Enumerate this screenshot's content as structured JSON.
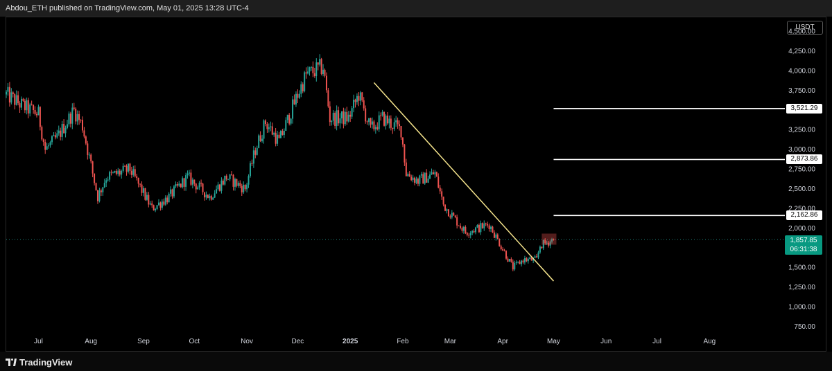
{
  "header": {
    "published": "Abdou_ETH published on TradingView.com, May 01, 2025 13:28 UTC-4"
  },
  "footer": {
    "brand": "TradingView"
  },
  "colors": {
    "up": "#26a69a",
    "down": "#ef5350",
    "trendline": "#f6e58d",
    "level": "#ffffff",
    "price_tag": "#089981"
  },
  "chart_data": {
    "type": "candlestick",
    "symbol_currency": "USDT",
    "y_ticks": [
      "4,500.00",
      "4,250.00",
      "4,000.00",
      "3,750.00",
      "3,500.00",
      "3,250.00",
      "3,000.00",
      "2,750.00",
      "2,500.00",
      "2,250.00",
      "2,000.00",
      "1,750.00",
      "1,500.00",
      "1,250.00",
      "1,000.00",
      "750.00"
    ],
    "y_tick_values": [
      4500,
      4250,
      4000,
      3750,
      3500,
      3250,
      3000,
      2750,
      2500,
      2250,
      2000,
      1750,
      1500,
      1250,
      1000,
      750
    ],
    "ylim": [
      680,
      4680
    ],
    "x_ticks": [
      "Jul",
      "Aug",
      "Sep",
      "Oct",
      "Nov",
      "Dec",
      "2025",
      "Feb",
      "Mar",
      "Apr",
      "May",
      "Jun",
      "Jul",
      "Aug"
    ],
    "x_tick_dates": [
      "2024-07-01",
      "2024-08-01",
      "2024-09-01",
      "2024-10-01",
      "2024-11-01",
      "2024-12-01",
      "2025-01-01",
      "2025-02-01",
      "2025-03-01",
      "2025-04-01",
      "2025-05-01",
      "2025-06-01",
      "2025-07-01",
      "2025-08-01"
    ],
    "xlim": [
      "2024-06-12",
      "2025-09-12"
    ],
    "price_path": [
      [
        "2024-06-12",
        3700
      ],
      [
        "2024-06-22",
        3550
      ],
      [
        "2024-07-01",
        3450
      ],
      [
        "2024-07-05",
        3000
      ],
      [
        "2024-07-12",
        3150
      ],
      [
        "2024-07-22",
        3500
      ],
      [
        "2024-07-27",
        3300
      ],
      [
        "2024-08-05",
        2400
      ],
      [
        "2024-08-10",
        2650
      ],
      [
        "2024-08-24",
        2750
      ],
      [
        "2024-09-06",
        2250
      ],
      [
        "2024-09-16",
        2400
      ],
      [
        "2024-09-27",
        2650
      ],
      [
        "2024-10-10",
        2400
      ],
      [
        "2024-10-20",
        2650
      ],
      [
        "2024-10-31",
        2500
      ],
      [
        "2024-11-06",
        3000
      ],
      [
        "2024-11-12",
        3350
      ],
      [
        "2024-11-20",
        3100
      ],
      [
        "2024-12-01",
        3700
      ],
      [
        "2024-12-06",
        3950
      ],
      [
        "2024-12-16",
        4050
      ],
      [
        "2024-12-20",
        3400
      ],
      [
        "2024-12-31",
        3400
      ],
      [
        "2025-01-06",
        3700
      ],
      [
        "2025-01-13",
        3250
      ],
      [
        "2025-01-20",
        3400
      ],
      [
        "2025-01-31",
        3250
      ],
      [
        "2025-02-03",
        2700
      ],
      [
        "2025-02-10",
        2600
      ],
      [
        "2025-02-20",
        2700
      ],
      [
        "2025-02-25",
        2300
      ],
      [
        "2025-03-10",
        1950
      ],
      [
        "2025-03-24",
        2050
      ],
      [
        "2025-04-07",
        1500
      ],
      [
        "2025-04-13",
        1600
      ],
      [
        "2025-04-21",
        1600
      ],
      [
        "2025-04-23",
        1780
      ],
      [
        "2025-05-01",
        1857.85
      ]
    ],
    "trendline": [
      [
        "2025-01-15",
        3850
      ],
      [
        "2025-05-01",
        1330
      ]
    ],
    "levels": [
      {
        "value": 3521.29,
        "label": "3,521.29"
      },
      {
        "value": 2873.86,
        "label": "2,873.86"
      },
      {
        "value": 2162.86,
        "label": "2,162.86"
      }
    ],
    "levels_start": "2025-05-01",
    "current_price": 1857.85,
    "current_price_label": "1,857.85",
    "countdown": "06:31:38"
  }
}
